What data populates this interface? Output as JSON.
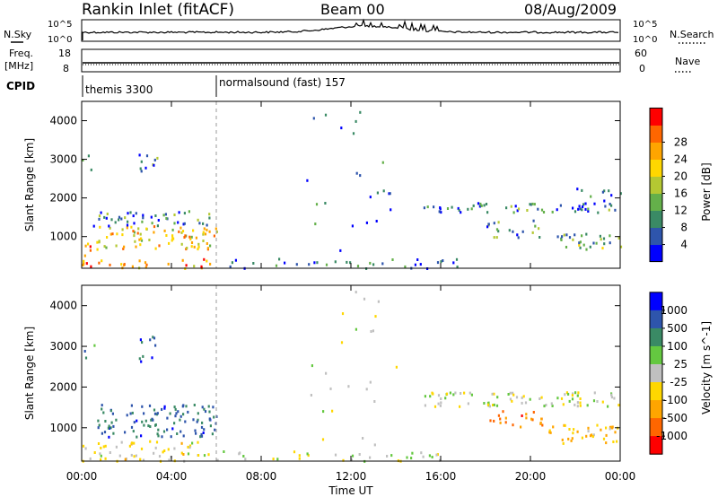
{
  "header": {
    "station": "Rankin Inlet (fitACF)",
    "beam": "Beam 00",
    "date": "08/Aug/2009"
  },
  "top_panels": {
    "nsky_label": "N.Sky",
    "nsky_ticks": [
      "10^5",
      "10^0"
    ],
    "nsearch_label": "N.Search",
    "nsearch_ticks": [
      "10^5",
      "10^0"
    ],
    "freq_label": "Freq.",
    "freq_unit": "[MHz]",
    "freq_ticks": [
      "18",
      "8"
    ],
    "nave_label": "Nave",
    "nave_ticks": [
      "60",
      "0"
    ],
    "cpid_label": "CPID",
    "cpid_segments": [
      {
        "name": "themis 3300",
        "start_h": 0,
        "end_h": 6
      },
      {
        "name": "normalsound (fast) 157",
        "start_h": 6,
        "end_h": 24
      }
    ]
  },
  "chart_data": [
    {
      "type": "heatmap",
      "title": "",
      "xlabel": "Time UT",
      "ylabel": "Slant Range [km]",
      "xlim": [
        0,
        24
      ],
      "ylim": [
        180,
        4500
      ],
      "x_ticks": [
        "00:00",
        "04:00",
        "08:00",
        "12:00",
        "16:00",
        "20:00",
        "00:00"
      ],
      "y_ticks": [
        "1000",
        "2000",
        "3000",
        "4000"
      ],
      "colorbar": {
        "label": "Power [dB]",
        "ticks": [
          "4",
          "8",
          "12",
          "16",
          "20",
          "24",
          "28"
        ],
        "range": [
          0,
          30
        ],
        "colors": [
          "#0000ff",
          "#2e55ac",
          "#3a8a65",
          "#64b04a",
          "#b4c832",
          "#ffd700",
          "#ffa500",
          "#ff6600",
          "#ff0000"
        ]
      },
      "regions": [
        {
          "t0": 0.0,
          "t1": 0.5,
          "r0": 200,
          "r1": 900,
          "value": 26,
          "density": 0.6
        },
        {
          "t0": 0.0,
          "t1": 5.9,
          "r0": 200,
          "r1": 450,
          "value": 22,
          "density": 0.5
        },
        {
          "t0": 0.6,
          "t1": 6.0,
          "r0": 700,
          "r1": 1300,
          "value": 18,
          "density": 0.7
        },
        {
          "t0": 0.5,
          "t1": 6.0,
          "r0": 1300,
          "r1": 1700,
          "value": 8,
          "density": 0.6
        },
        {
          "t0": 0.0,
          "t1": 0.6,
          "r0": 2600,
          "r1": 3300,
          "value": 6,
          "density": 0.2
        },
        {
          "t0": 2.5,
          "t1": 3.6,
          "r0": 2600,
          "r1": 3300,
          "value": 8,
          "density": 0.35
        },
        {
          "t0": 6.0,
          "t1": 17.0,
          "r0": 200,
          "r1": 450,
          "value": 6,
          "density": 0.35
        },
        {
          "t0": 10.0,
          "t1": 14.0,
          "r0": 400,
          "r1": 4400,
          "value": 6,
          "density": 0.04
        },
        {
          "t0": 15.2,
          "t1": 24.0,
          "r0": 1650,
          "r1": 1900,
          "value": 7,
          "density": 0.75
        },
        {
          "t0": 18.0,
          "t1": 20.5,
          "r0": 1000,
          "r1": 1450,
          "value": 10,
          "density": 0.5
        },
        {
          "t0": 21.0,
          "t1": 24.0,
          "r0": 700,
          "r1": 1100,
          "value": 10,
          "density": 0.7
        },
        {
          "t0": 21.5,
          "t1": 24.0,
          "r0": 1950,
          "r1": 2300,
          "value": 6,
          "density": 0.3
        }
      ]
    },
    {
      "type": "heatmap",
      "title": "",
      "xlabel": "Time UT",
      "ylabel": "Slant Range [km]",
      "xlim": [
        0,
        24
      ],
      "ylim": [
        180,
        4500
      ],
      "x_ticks": [
        "00:00",
        "04:00",
        "08:00",
        "12:00",
        "16:00",
        "20:00",
        "00:00"
      ],
      "y_ticks": [
        "1000",
        "2000",
        "3000",
        "4000"
      ],
      "colorbar": {
        "label": "Velocity [m s^-1]",
        "ticks": [
          "1000",
          "500",
          "100",
          "25",
          "-25",
          "-100",
          "-500",
          "-1000"
        ],
        "range": [
          -1000,
          1000
        ],
        "colors": [
          "#0000ff",
          "#2e55ac",
          "#3a8a65",
          "#64c840",
          "#c0c0c0",
          "#ffd700",
          "#ffa500",
          "#ff6600",
          "#ff0000"
        ]
      },
      "regions": [
        {
          "t0": 0.0,
          "t1": 5.9,
          "r0": 200,
          "r1": 700,
          "value": -120,
          "density": 0.55
        },
        {
          "t0": 0.6,
          "t1": 6.0,
          "r0": 800,
          "r1": 1600,
          "value": 600,
          "density": 0.7
        },
        {
          "t0": 0.0,
          "t1": 0.6,
          "r0": 2600,
          "r1": 3300,
          "value": 400,
          "density": 0.2
        },
        {
          "t0": 2.5,
          "t1": 3.6,
          "r0": 2600,
          "r1": 3300,
          "value": 600,
          "density": 0.35
        },
        {
          "t0": 6.0,
          "t1": 17.0,
          "r0": 200,
          "r1": 450,
          "value": 50,
          "density": 0.35
        },
        {
          "t0": 10.0,
          "t1": 14.0,
          "r0": 400,
          "r1": 4400,
          "value": -80,
          "density": 0.04
        },
        {
          "t0": 15.2,
          "t1": 24.0,
          "r0": 1550,
          "r1": 1900,
          "value": 0,
          "density": 0.75
        },
        {
          "t0": 18.0,
          "t1": 20.5,
          "r0": 1050,
          "r1": 1450,
          "value": -600,
          "density": 0.6
        },
        {
          "t0": 20.5,
          "t1": 24.0,
          "r0": 600,
          "r1": 1100,
          "value": -300,
          "density": 0.6
        }
      ]
    }
  ]
}
